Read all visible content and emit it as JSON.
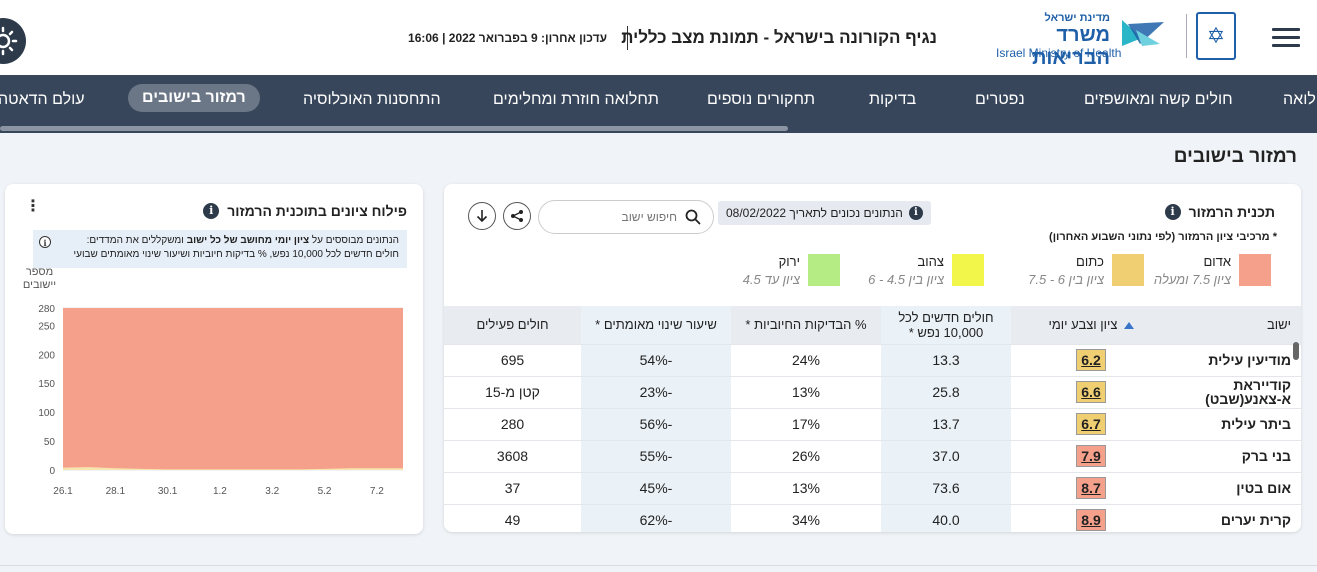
{
  "header": {
    "logo_small": "מדינת ישראל",
    "logo_big": "משרד הבריאות",
    "logo_en": "Israel Ministry of Health",
    "title": "נגיף הקורונה בישראל - תמונת מצב כללית",
    "updated": "עדכון אחרון: 9 בפברואר 2022 | 16:06"
  },
  "nav": {
    "items": [
      {
        "label": "תחלואה",
        "active": false
      },
      {
        "label": "חולים קשה ומאושפזים",
        "active": false
      },
      {
        "label": "נפטרים",
        "active": false
      },
      {
        "label": "בדיקות",
        "active": false
      },
      {
        "label": "תחקורים נוספים",
        "active": false
      },
      {
        "label": "תחלואה חוזרת ומחלימים",
        "active": false
      },
      {
        "label": "התחסנות האוכלוסיה",
        "active": false
      },
      {
        "label": "רמזור בישובים",
        "active": true
      },
      {
        "label": "עולם הדאטה",
        "active": false
      }
    ]
  },
  "section_title": "רמזור בישובים",
  "left_card": {
    "title": "פילוח ציונים בתוכנית הרמזור",
    "note_line1_pre": "הנתונים מבוססים על ",
    "note_line1_bold": "ציון יומי מחושב של כל ישוב",
    "note_line1_post": " ומשקללים את המדדים:",
    "note_line2": "חולים חדשים לכל 10,000 נפש, % בדיקות חיוביות ושיעור שינוי מאומתים שבועי",
    "ylabel_line1": "מספר",
    "ylabel_line2": "יישובים"
  },
  "chart_data": {
    "type": "area",
    "x": [
      "26.1",
      "27.1",
      "28.1",
      "29.1",
      "30.1",
      "31.1",
      "1.2",
      "2.2",
      "3.2",
      "4.2",
      "5.2",
      "6.2",
      "7.2",
      "8.2"
    ],
    "x_tick_labels": [
      "26.1",
      "28.1",
      "30.1",
      "1.2",
      "3.2",
      "5.2",
      "7.2"
    ],
    "ylabel": "מספר יישובים",
    "ylim": [
      0,
      280
    ],
    "y_ticks": [
      0,
      50,
      100,
      150,
      200,
      250,
      280
    ],
    "series": [
      {
        "color": "#f4a08a",
        "values": [
          280,
          280,
          280,
          280,
          280,
          280,
          280,
          280,
          280,
          280,
          280,
          280,
          280,
          280
        ]
      },
      {
        "color": "#f7e5b0",
        "values": [
          4,
          5,
          3,
          2,
          1,
          1,
          1,
          1,
          1,
          1,
          2,
          3,
          3,
          3
        ]
      }
    ],
    "grid": true
  },
  "right_card": {
    "title": "תכנית הרמזור",
    "subtitle": "* מרכיבי ציון הרמזור (לפי נתוני השבוע האחרון)",
    "date_note": "הנתונים נכונים לתאריך 08/02/2022",
    "search_placeholder": "חיפוש ישוב",
    "legend": [
      {
        "name": "אדום",
        "range": "ציון 7.5 ומעלה",
        "color": "#f4a08a"
      },
      {
        "name": "כתום",
        "range": "ציון בין 6 - 7.5",
        "color": "#f0cf73"
      },
      {
        "name": "צהוב",
        "range": "ציון בין 4.5 - 6",
        "color": "#f2f54a"
      },
      {
        "name": "ירוק",
        "range": "ציון עד 4.5",
        "color": "#b5ec84"
      }
    ],
    "columns": [
      "ישוב",
      "ציון וצבע יומי",
      "חולים חדשים לכל 10,000 נפש *",
      "% הבדיקות החיוביות *",
      "שיעור שינוי מאומתים *",
      "חולים פעילים"
    ],
    "rows": [
      {
        "city": "מודיעין עילית",
        "score": "6.2",
        "color": "#f0cf73",
        "new_cases": "13.3",
        "positive": "24%",
        "change": "-54%",
        "active": "695"
      },
      {
        "city": "קודייראת א-צאנע(שבט)",
        "score": "6.6",
        "color": "#f0cf73",
        "new_cases": "25.8",
        "positive": "13%",
        "change": "-23%",
        "active": "קטן מ-15"
      },
      {
        "city": "ביתר עילית",
        "score": "6.7",
        "color": "#f0cf73",
        "new_cases": "13.7",
        "positive": "17%",
        "change": "-56%",
        "active": "280"
      },
      {
        "city": "בני ברק",
        "score": "7.9",
        "color": "#f4a08a",
        "new_cases": "37.0",
        "positive": "26%",
        "change": "-55%",
        "active": "3608"
      },
      {
        "city": "אום בטין",
        "score": "8.7",
        "color": "#f4a08a",
        "new_cases": "73.6",
        "positive": "13%",
        "change": "-45%",
        "active": "37"
      },
      {
        "city": "קרית יערים",
        "score": "8.9",
        "color": "#f4a08a",
        "new_cases": "40.0",
        "positive": "34%",
        "change": "-62%",
        "active": "49"
      }
    ]
  }
}
